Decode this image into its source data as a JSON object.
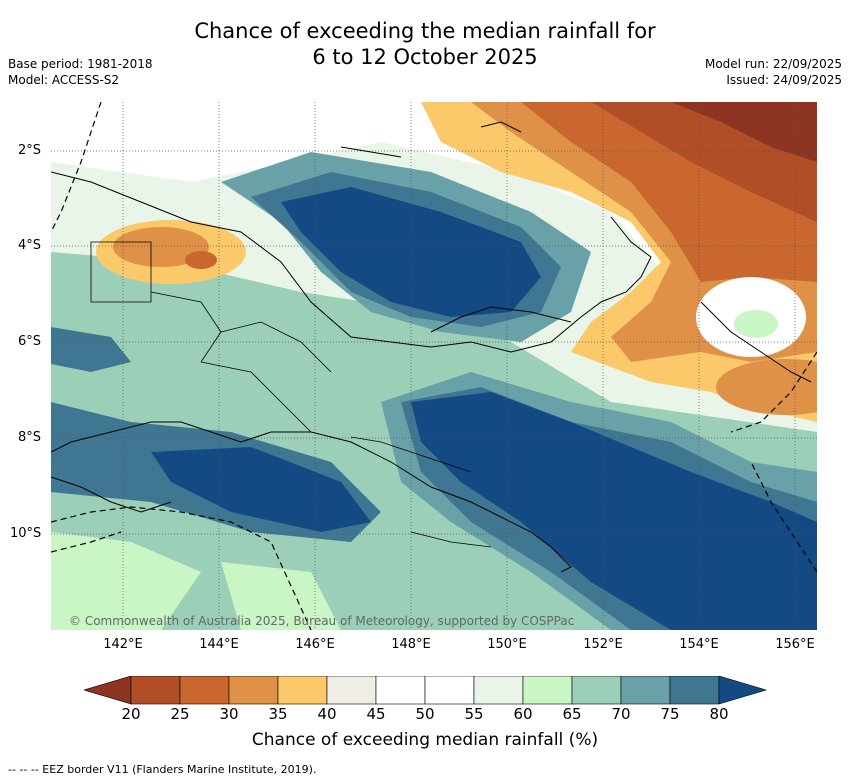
{
  "header": {
    "title_line1": "Chance of exceeding the median rainfall for",
    "title_line2": "6 to 12 October 2025",
    "base_period": "Base period: 1981-2018",
    "model": "Model: ACCESS-S2",
    "model_run": "Model run: 22/09/2025",
    "issued": "Issued: 24/09/2025"
  },
  "map": {
    "lat_labels": [
      "2°S",
      "4°S",
      "6°S",
      "8°S",
      "10°S"
    ],
    "lon_labels": [
      "142°E",
      "144°E",
      "146°E",
      "148°E",
      "150°E",
      "152°E",
      "154°E",
      "156°E"
    ],
    "copyright": "© Commonwealth of Australia 2025, Bureau of Meteorology, supported by COSPPac"
  },
  "legend": {
    "ticks": [
      "20",
      "25",
      "30",
      "35",
      "40",
      "45",
      "50",
      "55",
      "60",
      "65",
      "70",
      "75",
      "80"
    ],
    "colors": [
      "#b14e27",
      "#c9672f",
      "#df9147",
      "#fbc96a",
      "#f0ede4",
      "#ffffff",
      "#ffffff",
      "#e8f5e8",
      "#caf6c6",
      "#9ccfb7",
      "#69a1a8",
      "#3f7691"
    ],
    "low_extend_color": "#8e3422",
    "high_extend_color": "#144a84",
    "label": "Chance of exceeding median rainfall (%)"
  },
  "footnote": "--  --  -- EEZ border V11 (Flanders Marine Institute, 2019)."
}
